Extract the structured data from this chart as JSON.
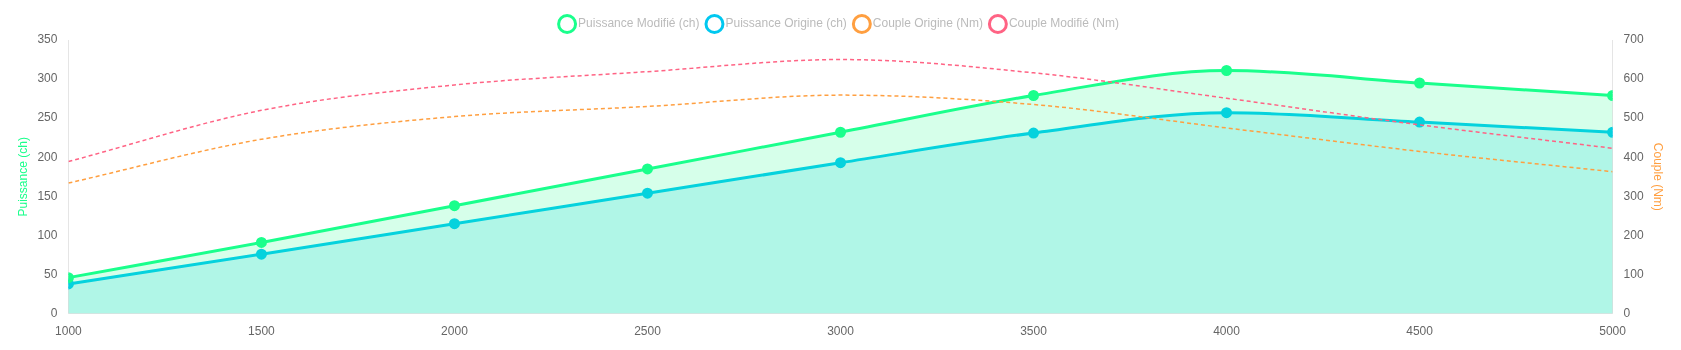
{
  "chart_data": {
    "type": "area",
    "x": [
      1000,
      1500,
      2000,
      2500,
      3000,
      3500,
      4000,
      4500,
      5000
    ],
    "series": [
      {
        "name": "Puissance Modifié (ch)",
        "color": "#1aff8c",
        "marker": "circle",
        "line_style": "solid",
        "values": [
          46,
          91,
          138,
          185,
          232,
          279,
          311,
          295,
          279
        ]
      },
      {
        "name": "Puissance Origine (ch)",
        "color": "#00c8f0",
        "marker": "circle",
        "line_style": "solid",
        "values": [
          38,
          76,
          115,
          154,
          193,
          231,
          257,
          245,
          232
        ]
      },
      {
        "name": "Couple Origine (Nm)",
        "type": "line",
        "axis": "y2",
        "color": "#ff9f40",
        "marker": "none",
        "line_style": "dashed",
        "values": [
          334,
          446,
          504,
          530,
          559,
          535,
          475,
          415,
          363
        ]
      },
      {
        "name": "Couple Modifié (Nm)",
        "type": "line",
        "axis": "y2",
        "color": "#ff6384",
        "marker": "none",
        "line_style": "dashed",
        "values": [
          389,
          520,
          585,
          619,
          650,
          616,
          551,
          483,
          423
        ]
      }
    ],
    "xlim": [
      1000,
      5000
    ],
    "xticks": [
      1000,
      1500,
      2000,
      2500,
      3000,
      3500,
      4000,
      4500,
      5000
    ],
    "ylim": [
      0,
      350
    ],
    "yticks": [
      0,
      50,
      100,
      150,
      200,
      250,
      300,
      350
    ],
    "y2lim": [
      0,
      700
    ],
    "y2ticks": [
      0,
      100,
      200,
      300,
      400,
      500,
      600,
      700
    ],
    "ylabel": "Puissance (ch)",
    "y2label": "Couple (Nm)",
    "grid": false,
    "legend": "top"
  }
}
